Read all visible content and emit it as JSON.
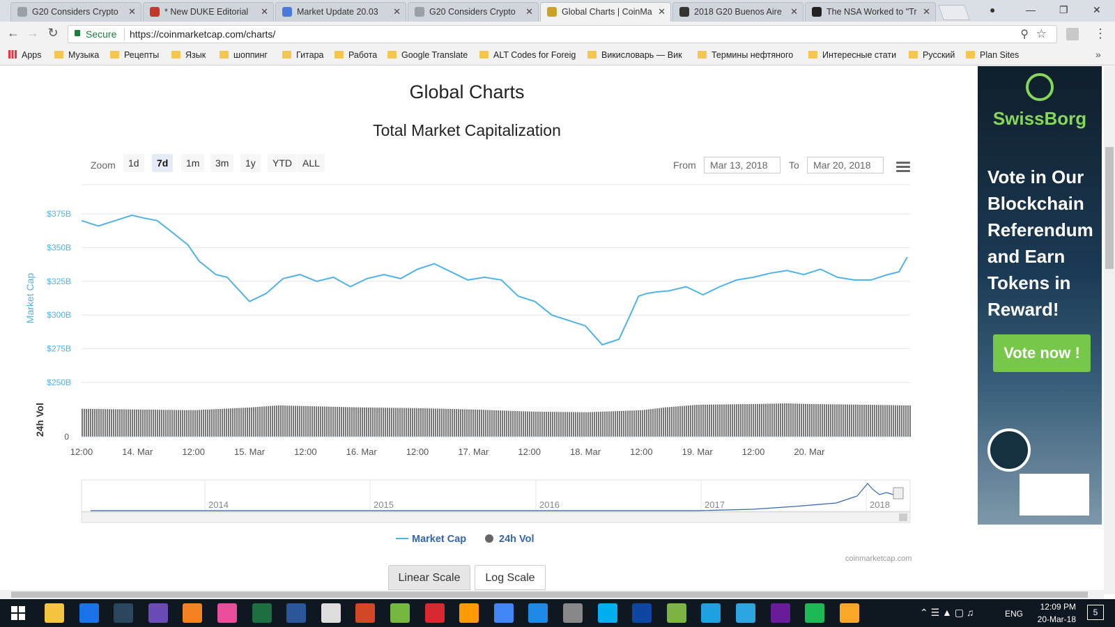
{
  "browser": {
    "tabs": [
      {
        "title": "G20 Considers Crypto",
        "active": false,
        "color": "#9aa0a6"
      },
      {
        "title": "* New DUKE Editorial",
        "active": false,
        "color": "#c0392b"
      },
      {
        "title": "Market Update 20.03",
        "active": false,
        "color": "#4a7bdc"
      },
      {
        "title": "G20 Considers Crypto",
        "active": false,
        "color": "#9aa0a6"
      },
      {
        "title": "Global Charts | CoinMa",
        "active": true,
        "color": "#c9a227"
      },
      {
        "title": "2018 G20 Buenos Aire",
        "active": false,
        "color": "#333333"
      },
      {
        "title": "The NSA Worked to \"Tr",
        "active": false,
        "color": "#222222"
      }
    ],
    "secure_label": "Secure",
    "url": "https://coinmarketcap.com/charts/",
    "bookmarks": [
      "Apps",
      "Музыка",
      "Рецепты",
      "Язык",
      "шоппинг",
      "Гитара",
      "Работа",
      "Google Translate",
      "ALT Codes for Foreig",
      "Викисловарь — Вик",
      "Термины нефтяного",
      "Интересные стати",
      "Русский",
      "Plan Sites"
    ]
  },
  "page": {
    "title": "Global Charts",
    "chart_title": "Total Market Capitalization",
    "zoom_label": "Zoom",
    "zoom_options": [
      "1d",
      "7d",
      "1m",
      "3m",
      "1y",
      "YTD",
      "ALL"
    ],
    "zoom_selected": "7d",
    "from_label": "From",
    "from_value": "Mar 13, 2018",
    "to_label": "To",
    "to_value": "Mar 20, 2018",
    "legend_market_cap": "Market Cap",
    "legend_vol": "24h Vol",
    "credit": "coinmarketcap.com",
    "linear_scale": "Linear Scale",
    "log_scale": "Log Scale"
  },
  "ad": {
    "brand": "SwissBorg",
    "headline": "Vote in Our Blockchain Referendum and Earn Tokens in Reward!",
    "cta": "Vote now !"
  },
  "taskbar": {
    "time": "12:09 PM",
    "date": "20-Mar-18",
    "language": "ENG",
    "notifications": "5"
  },
  "chart_data": {
    "type": "line",
    "title": "Total Market Capitalization",
    "ylabel": "Market Cap",
    "ylabel_vol": "24h Vol",
    "ylim": [
      250,
      375
    ],
    "y_ticks": [
      "$375B",
      "$350B",
      "$325B",
      "$300B",
      "$275B",
      "$250B"
    ],
    "y_tick_values": [
      375,
      350,
      325,
      300,
      275,
      250
    ],
    "vol_tick": "0",
    "x_ticks": [
      "12:00",
      "14. Mar",
      "12:00",
      "15. Mar",
      "12:00",
      "16. Mar",
      "12:00",
      "17. Mar",
      "12:00",
      "18. Mar",
      "12:00",
      "19. Mar",
      "12:00",
      "20. Mar"
    ],
    "x_range": [
      0,
      14.8
    ],
    "series": [
      {
        "name": "Market Cap",
        "color": "#4fb3e8",
        "unit": "B USD",
        "x": [
          0,
          0.3,
          0.6,
          0.9,
          1.1,
          1.35,
          1.6,
          1.9,
          2.1,
          2.4,
          2.6,
          3.0,
          3.3,
          3.6,
          3.9,
          4.2,
          4.5,
          4.8,
          5.1,
          5.4,
          5.7,
          6.0,
          6.3,
          6.6,
          6.9,
          7.2,
          7.5,
          7.8,
          8.1,
          8.4,
          8.7,
          9.0,
          9.3,
          9.6,
          9.8,
          9.95,
          10.1,
          10.25,
          10.5,
          10.8,
          11.1,
          11.4,
          11.7,
          12.0,
          12.3,
          12.6,
          12.9,
          13.2,
          13.5,
          13.8,
          14.1,
          14.4,
          14.6,
          14.75
        ],
        "y": [
          370,
          366,
          370,
          374,
          372,
          370,
          362,
          352,
          340,
          330,
          328,
          310,
          316,
          327,
          330,
          325,
          328,
          321,
          327,
          330,
          327,
          334,
          338,
          332,
          326,
          328,
          326,
          314,
          310,
          300,
          296,
          292,
          278,
          282,
          300,
          314,
          316,
          317,
          318,
          321,
          315,
          321,
          326,
          328,
          331,
          333,
          330,
          334,
          328,
          326,
          326,
          330,
          332,
          343
        ]
      },
      {
        "name": "24h Vol",
        "color": "#555555",
        "unit": "relative",
        "x": [
          0,
          1,
          2,
          3,
          3.5,
          4,
          5,
          6,
          7,
          8,
          9,
          10,
          10.4,
          11,
          12,
          12.6,
          13,
          14,
          14.75
        ],
        "y": [
          0.82,
          0.8,
          0.78,
          0.86,
          0.92,
          0.9,
          0.86,
          0.84,
          0.8,
          0.74,
          0.72,
          0.78,
          0.86,
          0.94,
          0.96,
          0.98,
          0.96,
          0.94,
          0.92
        ]
      }
    ],
    "navigator": {
      "years": [
        "2014",
        "2015",
        "2016",
        "2017",
        "2018"
      ]
    }
  }
}
